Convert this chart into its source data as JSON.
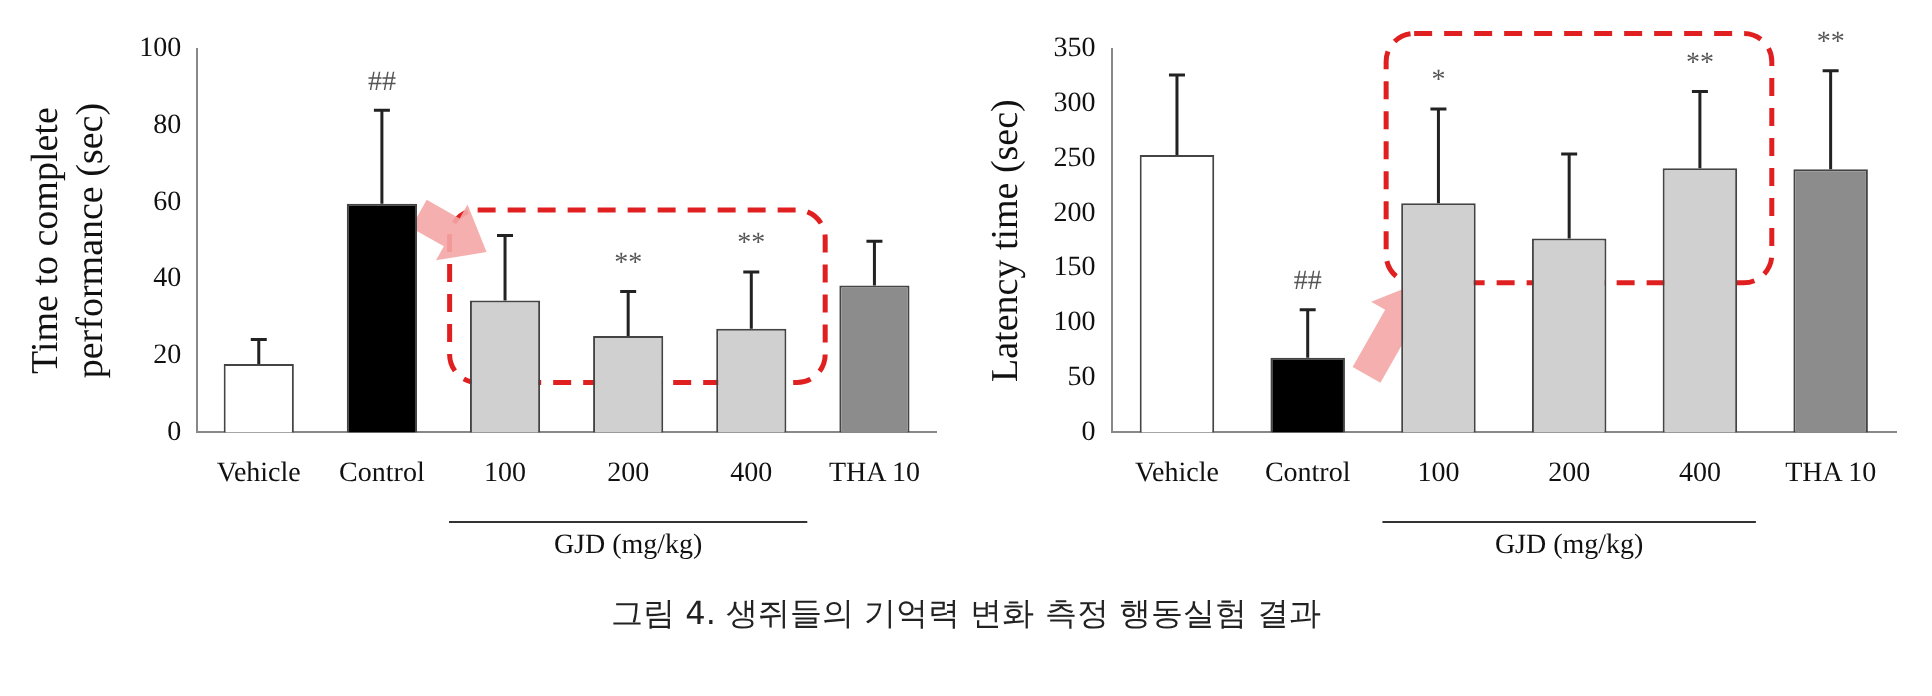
{
  "chart_data": [
    {
      "type": "bar",
      "ylabel": "Time to complete performance (sec)",
      "xlabel": "GJD (mg/kg)",
      "categories": [
        "Vehicle",
        "Control",
        "100",
        "200",
        "400",
        "THA 10"
      ],
      "values": [
        17.8,
        59.6,
        34.4,
        25.1,
        27.0,
        38.3
      ],
      "colors": [
        "#ffffff",
        "#000000",
        "#d0d0d0",
        "#d0d0d0",
        "#d0d0d0",
        "#8c8c8c"
      ],
      "errors": [
        [
          17.8,
          24.2
        ],
        [
          59.6,
          84.0
        ],
        [
          34.4,
          51.3
        ],
        [
          25.1,
          36.7
        ],
        [
          27.0,
          41.8
        ],
        [
          38.3,
          49.8
        ]
      ],
      "ylim": [
        0,
        100
      ],
      "yticks": [
        0,
        20,
        40,
        60,
        80,
        100
      ],
      "grid": false,
      "legend": false,
      "annotations": [
        {
          "text": "##",
          "x": "Control",
          "y": 84.0
        },
        {
          "text": "**",
          "x": "200",
          "y": 36.7
        },
        {
          "text": "**",
          "x": "400",
          "y": 41.8
        },
        "그림 4. 생쥐들의 기억력 변화 측정 행동실험 결과"
      ]
    },
    {
      "type": "bar",
      "ylabel": "Latency time (sec)",
      "xlabel": "GJD (mg/kg)",
      "categories": [
        "Vehicle",
        "Control",
        "100",
        "200",
        "400",
        "THA 10"
      ],
      "values": [
        253,
        68,
        209,
        177,
        241,
        240
      ],
      "colors": [
        "#ffffff",
        "#000000",
        "#d0d0d0",
        "#d0d0d0",
        "#d0d0d0",
        "#8c8c8c"
      ],
      "errors": [
        [
          253,
          326
        ],
        [
          68,
          112
        ],
        [
          209,
          295
        ],
        [
          177,
          254
        ],
        [
          241,
          311
        ],
        [
          240,
          330
        ]
      ],
      "ylim": [
        0,
        350
      ],
      "yticks": [
        0,
        50,
        100,
        150,
        200,
        250,
        300,
        350
      ],
      "grid": false,
      "legend": false,
      "annotations": [
        {
          "text": "##",
          "x": "Control",
          "y": 112
        },
        {
          "text": "*",
          "x": "100",
          "y": 295
        },
        {
          "text": "**",
          "x": "400",
          "y": 311
        },
        {
          "text": "**",
          "x": "THA 10",
          "y": 330
        }
      ]
    }
  ]
}
